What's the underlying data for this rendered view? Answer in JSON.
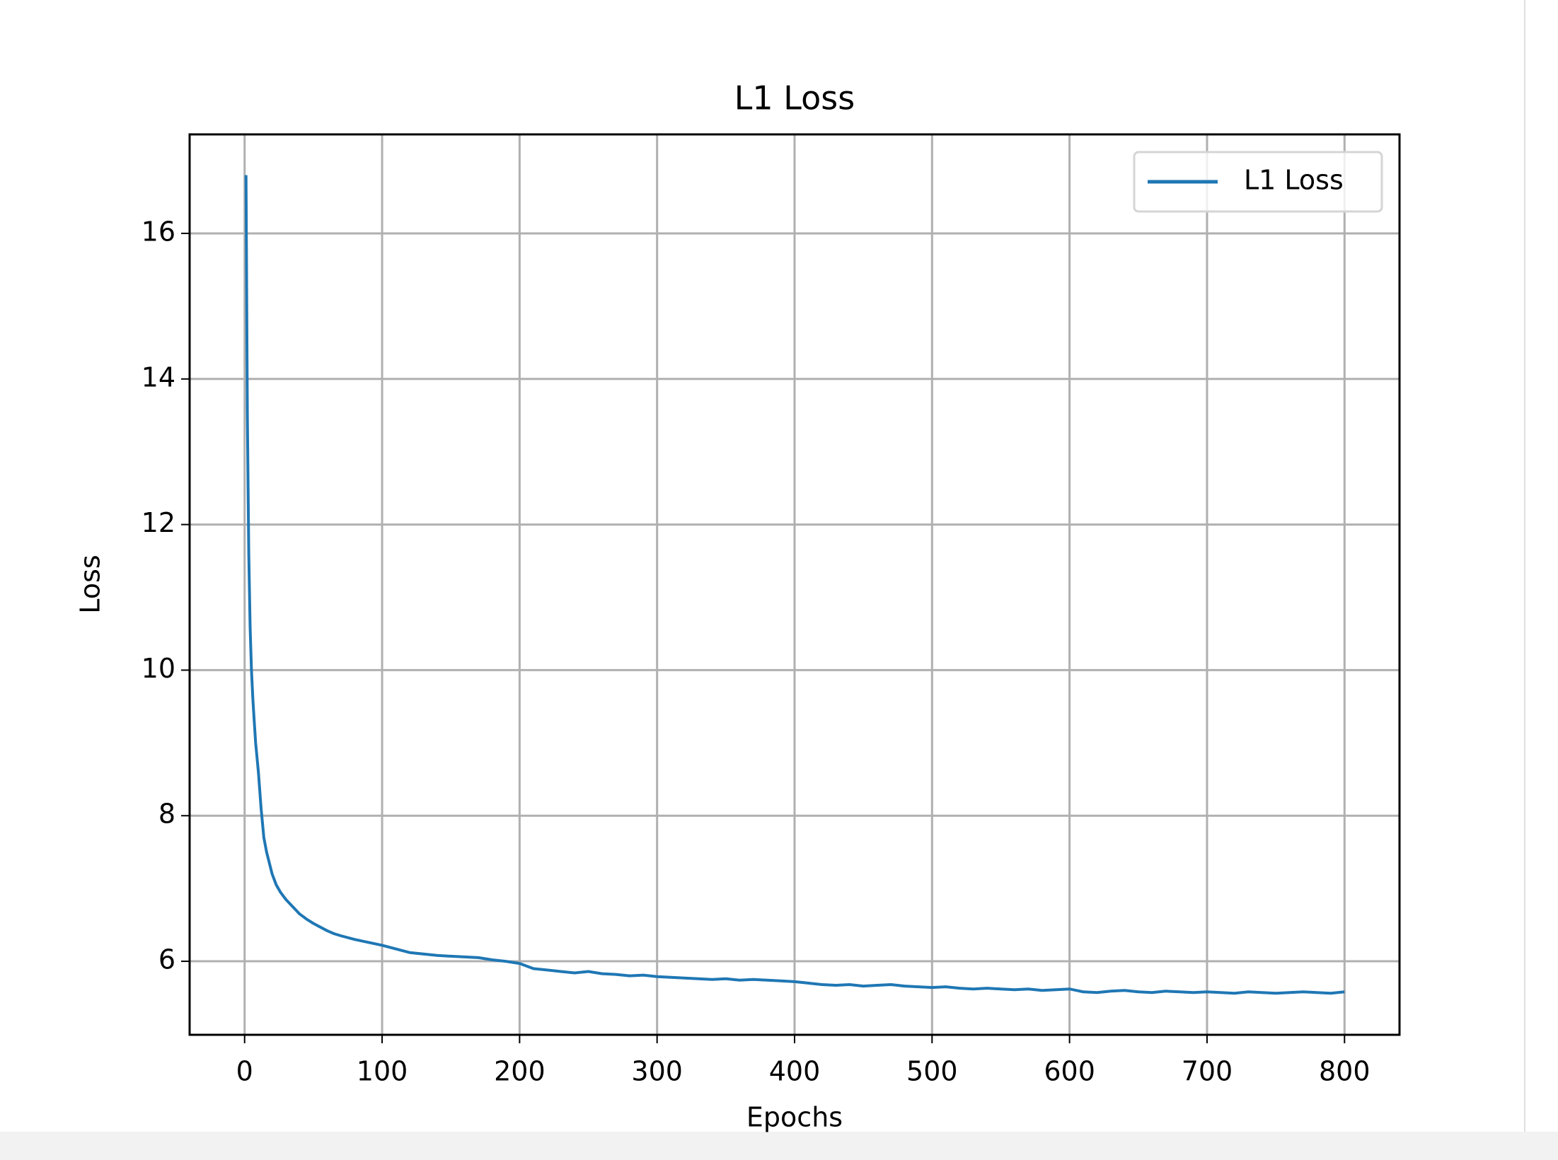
{
  "chart_data": {
    "type": "line",
    "title": "L1 Loss",
    "x_label": "Epochs",
    "y_label": "Loss",
    "x": [
      1,
      2,
      3,
      4,
      5,
      6,
      7,
      8,
      10,
      12,
      14,
      16,
      18,
      20,
      23,
      26,
      30,
      35,
      40,
      45,
      50,
      55,
      60,
      65,
      70,
      80,
      90,
      100,
      110,
      120,
      130,
      140,
      150,
      160,
      170,
      180,
      190,
      200,
      210,
      220,
      230,
      240,
      250,
      260,
      270,
      280,
      290,
      300,
      310,
      320,
      330,
      340,
      350,
      360,
      370,
      380,
      390,
      400,
      410,
      420,
      430,
      440,
      450,
      460,
      470,
      480,
      490,
      500,
      510,
      520,
      530,
      540,
      550,
      560,
      570,
      580,
      590,
      600,
      610,
      620,
      630,
      640,
      650,
      660,
      670,
      680,
      690,
      700,
      710,
      720,
      730,
      740,
      750,
      760,
      770,
      780,
      790,
      800
    ],
    "series": [
      {
        "name": "L1 Loss",
        "color": "#1f77b4",
        "values": [
          16.8,
          13.5,
          11.6,
          10.6,
          10.0,
          9.6,
          9.3,
          9.0,
          8.6,
          8.1,
          7.7,
          7.5,
          7.35,
          7.2,
          7.05,
          6.95,
          6.85,
          6.75,
          6.65,
          6.58,
          6.52,
          6.47,
          6.42,
          6.38,
          6.35,
          6.3,
          6.26,
          6.22,
          6.17,
          6.12,
          6.1,
          6.08,
          6.07,
          6.06,
          6.05,
          6.02,
          6.0,
          5.97,
          5.9,
          5.88,
          5.86,
          5.84,
          5.86,
          5.83,
          5.82,
          5.8,
          5.81,
          5.79,
          5.78,
          5.77,
          5.76,
          5.75,
          5.76,
          5.74,
          5.75,
          5.74,
          5.73,
          5.72,
          5.7,
          5.68,
          5.67,
          5.68,
          5.66,
          5.67,
          5.68,
          5.66,
          5.65,
          5.64,
          5.65,
          5.63,
          5.62,
          5.63,
          5.62,
          5.61,
          5.62,
          5.6,
          5.61,
          5.62,
          5.58,
          5.57,
          5.59,
          5.6,
          5.58,
          5.57,
          5.59,
          5.58,
          5.57,
          5.58,
          5.57,
          5.56,
          5.58,
          5.57,
          5.56,
          5.57,
          5.58,
          5.57,
          5.56,
          5.58
        ]
      }
    ],
    "xlim": [
      -40,
      840
    ],
    "ylim": [
      4.99,
      17.36
    ],
    "xticks": [
      0,
      100,
      200,
      300,
      400,
      500,
      600,
      700,
      800
    ],
    "yticks": [
      6,
      8,
      10,
      12,
      14,
      16
    ],
    "grid": true,
    "legend": "upper right"
  }
}
